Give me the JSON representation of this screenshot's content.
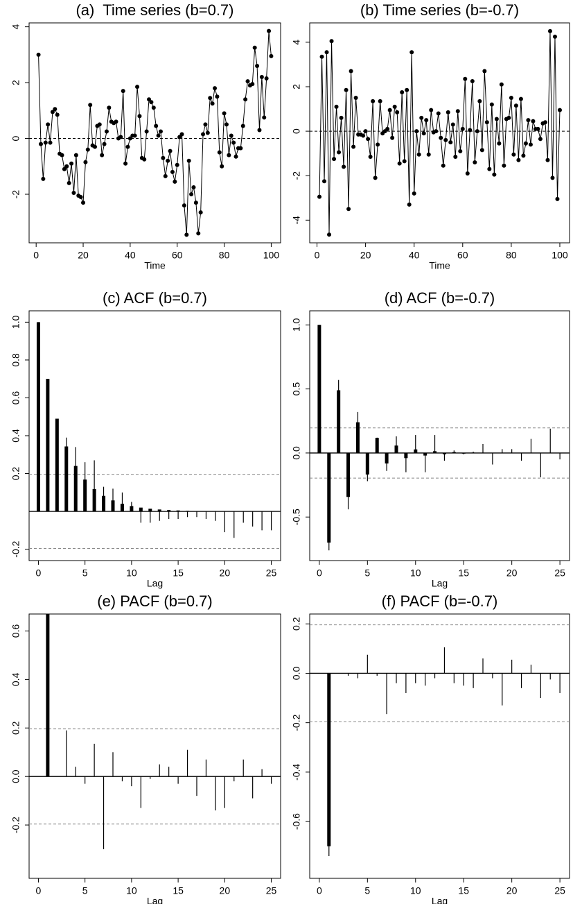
{
  "chart_data": [
    {
      "type": "line",
      "title": "(a)  Time series (b=0.7)",
      "xlabel": "Time",
      "x": [
        1,
        2,
        3,
        4,
        5,
        6,
        7,
        8,
        9,
        10,
        11,
        12,
        13,
        14,
        15,
        16,
        17,
        18,
        19,
        20,
        21,
        22,
        23,
        24,
        25,
        26,
        27,
        28,
        29,
        30,
        31,
        32,
        33,
        34,
        35,
        36,
        37,
        38,
        39,
        40,
        41,
        42,
        43,
        44,
        45,
        46,
        47,
        48,
        49,
        50,
        51,
        52,
        53,
        54,
        55,
        56,
        57,
        58,
        59,
        60,
        61,
        62,
        63,
        64,
        65,
        66,
        67,
        68,
        69,
        70,
        71,
        72,
        73,
        74,
        75,
        76,
        77,
        78,
        79,
        80,
        81,
        82,
        83,
        84,
        85,
        86,
        87,
        88,
        89,
        90,
        91,
        92,
        93,
        94,
        95,
        96,
        97,
        98,
        99,
        100
      ],
      "values": [
        3.0,
        -0.2,
        -1.45,
        -0.15,
        0.5,
        -0.15,
        0.95,
        1.05,
        0.85,
        -0.55,
        -0.6,
        -1.1,
        -1.0,
        -1.6,
        -0.9,
        -1.95,
        -0.6,
        -2.05,
        -2.1,
        -2.3,
        -0.85,
        -0.4,
        1.2,
        -0.25,
        -0.3,
        0.45,
        0.5,
        -0.6,
        -0.2,
        0.25,
        1.1,
        0.6,
        0.55,
        0.6,
        0.0,
        0.05,
        1.7,
        -0.9,
        -0.3,
        0.0,
        0.1,
        0.1,
        1.85,
        0.8,
        -0.7,
        -0.75,
        0.25,
        1.4,
        1.3,
        1.1,
        0.45,
        0.1,
        0.25,
        -0.7,
        -1.35,
        -0.8,
        -0.45,
        -1.2,
        -1.55,
        -0.95,
        0.05,
        0.15,
        -2.4,
        -3.45,
        -0.8,
        -2.0,
        -1.75,
        -2.3,
        -3.4,
        -2.65,
        0.15,
        0.5,
        0.2,
        1.45,
        1.25,
        1.8,
        1.5,
        -0.5,
        -1.0,
        0.9,
        0.5,
        -0.6,
        0.1,
        -0.15,
        -0.65,
        -0.35,
        -0.35,
        0.45,
        1.4,
        2.05,
        1.9,
        1.95,
        3.25,
        2.6,
        0.3,
        2.2,
        0.75,
        2.15,
        3.85,
        2.95
      ],
      "color": "#000000",
      "xlim": [
        -3,
        104
      ],
      "ylim": [
        -3.74,
        4.14
      ],
      "xticks": [
        0,
        20,
        40,
        60,
        80,
        100
      ],
      "yticks": [
        -2,
        0,
        2,
        4
      ],
      "hline": 0
    },
    {
      "type": "line",
      "title": "(b) Time series (b=-0.7)",
      "xlabel": "Time",
      "x": [
        1,
        2,
        3,
        4,
        5,
        6,
        7,
        8,
        9,
        10,
        11,
        12,
        13,
        14,
        15,
        16,
        17,
        18,
        19,
        20,
        21,
        22,
        23,
        24,
        25,
        26,
        27,
        28,
        29,
        30,
        31,
        32,
        33,
        34,
        35,
        36,
        37,
        38,
        39,
        40,
        41,
        42,
        43,
        44,
        45,
        46,
        47,
        48,
        49,
        50,
        51,
        52,
        53,
        54,
        55,
        56,
        57,
        58,
        59,
        60,
        61,
        62,
        63,
        64,
        65,
        66,
        67,
        68,
        69,
        70,
        71,
        72,
        73,
        74,
        75,
        76,
        77,
        78,
        79,
        80,
        81,
        82,
        83,
        84,
        85,
        86,
        87,
        88,
        89,
        90,
        91,
        92,
        93,
        94,
        95,
        96,
        97,
        98,
        99,
        100
      ],
      "values": [
        -2.95,
        3.35,
        -2.25,
        3.55,
        -4.65,
        4.05,
        -1.25,
        1.1,
        -0.95,
        0.6,
        -1.6,
        1.85,
        -3.5,
        2.7,
        -0.7,
        1.5,
        -0.15,
        -0.15,
        -0.2,
        0.0,
        -0.35,
        -1.15,
        1.35,
        -2.1,
        -0.6,
        1.35,
        -0.1,
        0.0,
        0.1,
        0.95,
        -0.3,
        1.1,
        0.85,
        -1.45,
        1.75,
        -1.35,
        1.85,
        -3.3,
        3.55,
        -2.8,
        0.0,
        -1.05,
        0.6,
        -0.1,
        0.5,
        -1.05,
        0.95,
        -0.05,
        0.0,
        0.8,
        -0.3,
        -1.55,
        -0.4,
        0.85,
        -0.5,
        0.3,
        -1.15,
        0.9,
        -0.9,
        0.1,
        2.35,
        -1.9,
        0.05,
        2.25,
        -1.4,
        0.0,
        1.35,
        -0.85,
        2.7,
        0.4,
        -1.7,
        1.2,
        -1.95,
        0.55,
        -0.55,
        2.1,
        -1.55,
        0.55,
        0.6,
        1.5,
        -1.05,
        1.15,
        -1.3,
        1.45,
        -1.1,
        -0.55,
        0.5,
        -0.6,
        0.45,
        0.1,
        0.1,
        -0.35,
        0.35,
        0.4,
        -1.3,
        4.5,
        -2.1,
        4.25,
        -3.05,
        0.95
      ],
      "color": "#000000",
      "xlim": [
        -3,
        104
      ],
      "ylim": [
        -5.02,
        4.87
      ],
      "xticks": [
        0,
        20,
        40,
        60,
        80,
        100
      ],
      "yticks": [
        -4,
        -2,
        0,
        2,
        4
      ],
      "hline": 0
    },
    {
      "type": "stem",
      "title": "(c) ACF (b=0.7)",
      "xlabel": "Lag",
      "x": [
        0,
        1,
        2,
        3,
        4,
        5,
        6,
        7,
        8,
        9,
        10,
        11,
        12,
        13,
        14,
        15,
        16,
        17,
        18,
        19,
        20,
        21,
        22,
        23,
        24,
        25
      ],
      "series": [
        {
          "color": "#000000",
          "values": [
            1,
            0.7,
            0.49,
            0.343,
            0.24,
            0.168,
            0.118,
            0.082,
            0.058,
            0.04,
            0.028,
            0.02,
            0.014,
            0.01,
            0.007,
            0.005,
            0.003,
            0.002,
            0.002,
            0.001,
            0.001,
            0.001,
            0,
            0,
            0,
            0
          ]
        },
        {
          "color": "#000000",
          "values": [
            1,
            0.7,
            0.49,
            0.39,
            0.34,
            0.26,
            0.27,
            0.13,
            0.12,
            0.1,
            0.05,
            -0.06,
            -0.06,
            -0.05,
            -0.04,
            -0.04,
            -0.03,
            -0.03,
            -0.04,
            -0.05,
            -0.11,
            -0.14,
            -0.06,
            -0.08,
            -0.1,
            -0.1
          ]
        }
      ],
      "xlim": [
        -1,
        26
      ],
      "ylim": [
        -0.26,
        1.06
      ],
      "xticks": [
        0,
        5,
        10,
        15,
        20,
        25
      ],
      "yticks": [
        -0.2,
        0.2,
        0.4,
        0.6,
        0.8,
        {
          "value": 1,
          "label": "1.0"
        }
      ],
      "ci": [
        -0.196,
        0.196
      ]
    },
    {
      "type": "stem",
      "title": "(d) ACF (b=-0.7)",
      "xlabel": "Lag",
      "x": [
        0,
        1,
        2,
        3,
        4,
        5,
        6,
        7,
        8,
        9,
        10,
        11,
        12,
        13,
        14,
        15,
        16,
        17,
        18,
        19,
        20,
        21,
        22,
        23,
        24,
        25
      ],
      "series": [
        {
          "color": "#000000",
          "values": [
            1,
            -0.7,
            0.49,
            -0.343,
            0.24,
            -0.168,
            0.118,
            -0.082,
            0.058,
            -0.04,
            0.028,
            -0.02,
            0.014,
            -0.01,
            0.007,
            -0.005,
            0.003,
            -0.002,
            0.002,
            -0.001,
            0.001,
            -0.001,
            0,
            0,
            0,
            0
          ]
        },
        {
          "color": "#000000",
          "values": [
            1,
            -0.76,
            0.57,
            -0.44,
            0.32,
            -0.22,
            0.12,
            -0.14,
            0.13,
            -0.15,
            0.14,
            -0.15,
            0.14,
            -0.06,
            0.02,
            -0.01,
            0.01,
            0.07,
            -0.09,
            0.03,
            0.03,
            -0.06,
            0.11,
            -0.19,
            0.19,
            -0.05
          ]
        }
      ],
      "xlim": [
        -1,
        26
      ],
      "ylim": [
        -0.84,
        1.11
      ],
      "xticks": [
        0,
        5,
        10,
        15,
        20,
        25
      ],
      "yticks": [
        -0.5,
        {
          "value": 0,
          "label": "0.0"
        },
        0.5,
        {
          "value": 1,
          "label": "1.0"
        }
      ],
      "ci": [
        -0.196,
        0.196
      ]
    },
    {
      "type": "stem",
      "title": "(e) PACF (b=0.7)",
      "xlabel": "Lag",
      "x": [
        1,
        2,
        3,
        4,
        5,
        6,
        7,
        8,
        9,
        10,
        11,
        12,
        13,
        14,
        15,
        16,
        17,
        18,
        19,
        20,
        21,
        22,
        23,
        24,
        25
      ],
      "series": [
        {
          "color": "#000000",
          "values": [
            0.7,
            0,
            0,
            0,
            0,
            0,
            0,
            0,
            0,
            0,
            0,
            0,
            0,
            0,
            0,
            0,
            0,
            0,
            0,
            0,
            0,
            0,
            0,
            0,
            0
          ]
        },
        {
          "color": "#000000",
          "values": [
            0.72,
            0,
            0.19,
            0.04,
            -0.03,
            0.135,
            -0.3,
            0.1,
            -0.02,
            -0.04,
            -0.13,
            -0.01,
            0.05,
            0.04,
            -0.03,
            0.11,
            -0.08,
            0.07,
            -0.14,
            -0.13,
            -0.02,
            0.07,
            -0.09,
            0.03,
            -0.03
          ]
        }
      ],
      "xlim": [
        -1,
        26
      ],
      "ylim": [
        -0.42,
        0.67
      ],
      "xticks": [
        0,
        5,
        10,
        15,
        20,
        25
      ],
      "yticks": [
        -0.2,
        {
          "value": 0,
          "label": "0.0"
        },
        0.2,
        0.4,
        0.6
      ],
      "ci": [
        -0.196,
        0.196
      ]
    },
    {
      "type": "stem",
      "title": "(f) PACF (b=-0.7)",
      "xlabel": "Lag",
      "x": [
        1,
        2,
        3,
        4,
        5,
        6,
        7,
        8,
        9,
        10,
        11,
        12,
        13,
        14,
        15,
        16,
        17,
        18,
        19,
        20,
        21,
        22,
        23,
        24,
        25
      ],
      "series": [
        {
          "color": "#000000",
          "values": [
            -0.7,
            0,
            0,
            0,
            0,
            0,
            0,
            0,
            0,
            0,
            0,
            0,
            0,
            0,
            0,
            0,
            0,
            0,
            0,
            0,
            0,
            0,
            0,
            0,
            0
          ]
        },
        {
          "color": "#000000",
          "values": [
            -0.74,
            0,
            -0.01,
            -0.02,
            0.075,
            -0.01,
            -0.165,
            -0.04,
            -0.08,
            -0.04,
            -0.05,
            -0.02,
            0.105,
            -0.04,
            -0.05,
            -0.06,
            0.06,
            -0.02,
            -0.13,
            0.055,
            -0.06,
            0.035,
            -0.1,
            -0.025,
            -0.08
          ]
        }
      ],
      "xlim": [
        -1,
        26
      ],
      "ylim": [
        -0.83,
        0.24
      ],
      "xticks": [
        0,
        5,
        10,
        15,
        20,
        25
      ],
      "yticks": [
        -0.6,
        -0.4,
        -0.2,
        {
          "value": 0,
          "label": "0.0"
        },
        0.2
      ],
      "ci": [
        -0.196,
        0.196
      ]
    }
  ]
}
